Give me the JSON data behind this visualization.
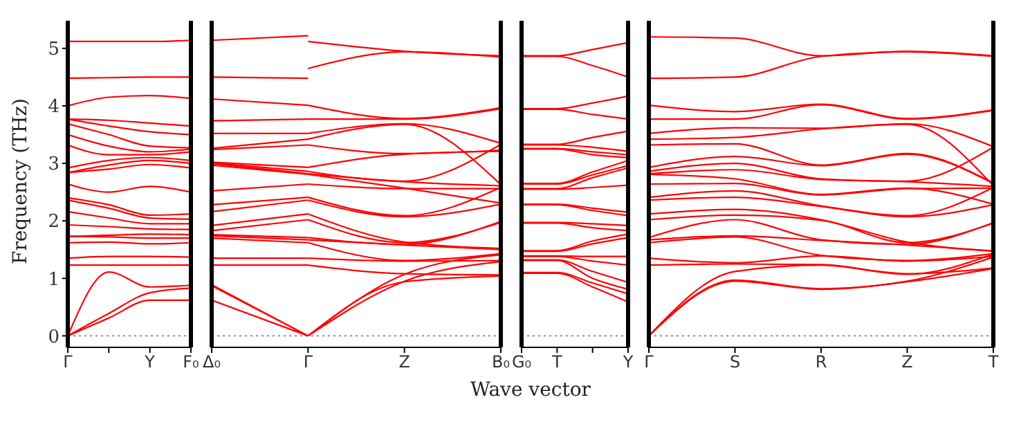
{
  "chart_data": [
    {
      "type": "line",
      "ylabel": "Frequency (THz)",
      "ylim": [
        -0.2,
        5.48
      ],
      "yticks": [
        0,
        1,
        2,
        3,
        4,
        5
      ],
      "categories": [
        "Γ",
        null,
        "Y",
        "F₀"
      ],
      "grid": false,
      "marker": "none",
      "ref_lines": [
        {
          "axis": "y",
          "value": 0,
          "label": null,
          "color": "#6f6fff",
          "line_style": "dotted"
        }
      ],
      "series": [
        {
          "color": "#ff0000",
          "values": [
            0,
            0.31,
            0.62,
            0.62
          ]
        },
        {
          "color": "#ff0000",
          "values": [
            0,
            0.39,
            0.75,
            0.83
          ]
        },
        {
          "color": "#ff0000",
          "values": [
            0,
            1.11,
            0.85,
            0.88
          ]
        },
        {
          "color": "#ff0000",
          "values": [
            1.23,
            1.23,
            1.23,
            1.23
          ]
        },
        {
          "color": "#ff0000",
          "values": [
            1.35,
            1.38,
            1.38,
            1.37
          ]
        },
        {
          "color": "#ff0000",
          "values": [
            1.62,
            1.63,
            1.6,
            1.62
          ]
        },
        {
          "color": "#ff0000",
          "values": [
            1.73,
            1.72,
            1.7,
            1.7
          ]
        },
        {
          "color": "#ff0000",
          "values": [
            1.73,
            1.75,
            1.77,
            1.76
          ]
        },
        {
          "color": "#ff0000",
          "values": [
            1.93,
            1.9,
            1.86,
            1.85
          ]
        },
        {
          "color": "#ff0000",
          "values": [
            2.16,
            2.05,
            1.95,
            1.95
          ]
        },
        {
          "color": "#ff0000",
          "values": [
            2.36,
            2.22,
            2.05,
            2.03
          ]
        },
        {
          "color": "#ff0000",
          "values": [
            2.4,
            2.28,
            2.1,
            2.12
          ]
        },
        {
          "color": "#ff0000",
          "values": [
            2.64,
            2.5,
            2.6,
            2.5
          ]
        },
        {
          "color": "#ff0000",
          "values": [
            2.84,
            2.9,
            2.98,
            2.92
          ]
        },
        {
          "color": "#ff0000",
          "values": [
            2.84,
            2.97,
            3.05,
            3.0
          ]
        },
        {
          "color": "#ff0000",
          "values": [
            2.92,
            3.05,
            3.1,
            3.05
          ]
        },
        {
          "color": "#ff0000",
          "values": [
            3.32,
            3.15,
            3.15,
            3.2
          ]
        },
        {
          "color": "#ff0000",
          "values": [
            3.5,
            3.3,
            3.2,
            3.25
          ]
        },
        {
          "color": "#ff0000",
          "values": [
            3.69,
            3.5,
            3.3,
            3.27
          ]
        },
        {
          "color": "#ff0000",
          "values": [
            3.77,
            3.65,
            3.55,
            3.5
          ]
        },
        {
          "color": "#ff0000",
          "values": [
            3.77,
            3.75,
            3.7,
            3.65
          ]
        },
        {
          "color": "#ff0000",
          "values": [
            4.0,
            4.15,
            4.18,
            4.13
          ]
        },
        {
          "color": "#ff0000",
          "values": [
            4.48,
            4.49,
            4.5,
            4.5
          ]
        },
        {
          "color": "#ff0000",
          "values": [
            5.12,
            5.12,
            5.12,
            5.14
          ]
        }
      ]
    },
    {
      "type": "line",
      "xlabel": "Wave vector",
      "tick_labels": "x",
      "ylim": [
        -0.2,
        5.48
      ],
      "yticks": [
        0,
        1,
        2,
        3,
        4,
        5
      ],
      "categories": [
        "Δ₀",
        "Γ",
        "Z",
        "B₀"
      ],
      "grid": false,
      "marker": "none",
      "ref_lines": [
        {
          "axis": "y",
          "value": 0,
          "label": null,
          "color": "#6f6fff",
          "line_style": "dotted"
        }
      ],
      "series": [
        {
          "color": "#ff0000",
          "values": [
            0.62,
            0,
            null,
            null
          ]
        },
        {
          "color": "#ff0000",
          "values": [
            0.87,
            0,
            null,
            null
          ]
        },
        {
          "color": "#ff0000",
          "values": [
            0.89,
            0,
            null,
            null
          ]
        },
        {
          "color": "#ff0000",
          "values": [
            1.23,
            1.23,
            null,
            null
          ]
        },
        {
          "color": "#ff0000",
          "values": [
            1.35,
            1.35,
            null,
            null
          ]
        },
        {
          "color": "#ff0000",
          "values": [
            1.7,
            1.62,
            null,
            null
          ]
        },
        {
          "color": "#ff0000",
          "values": [
            1.74,
            1.67,
            null,
            null
          ]
        },
        {
          "color": "#ff0000",
          "values": [
            1.76,
            1.71,
            null,
            null
          ]
        },
        {
          "color": "#ff0000",
          "values": [
            1.83,
            2.02,
            null,
            null
          ]
        },
        {
          "color": "#ff0000",
          "values": [
            1.92,
            2.12,
            null,
            null
          ]
        },
        {
          "color": "#ff0000",
          "values": [
            2.16,
            2.36,
            null,
            null
          ]
        },
        {
          "color": "#ff0000",
          "values": [
            2.28,
            2.41,
            null,
            null
          ]
        },
        {
          "color": "#ff0000",
          "values": [
            2.52,
            2.64,
            null,
            null
          ]
        },
        {
          "color": "#ff0000",
          "values": [
            2.97,
            2.81,
            null,
            null
          ]
        },
        {
          "color": "#ff0000",
          "values": [
            3.0,
            2.82,
            null,
            null
          ]
        },
        {
          "color": "#ff0000",
          "values": [
            3.01,
            2.86,
            null,
            null
          ]
        },
        {
          "color": "#ff0000",
          "values": [
            3.02,
            2.93,
            null,
            null
          ]
        },
        {
          "color": "#ff0000",
          "values": [
            3.24,
            3.32,
            null,
            null
          ]
        },
        {
          "color": "#ff0000",
          "values": [
            3.26,
            3.42,
            null,
            null
          ]
        },
        {
          "color": "#ff0000",
          "values": [
            3.52,
            3.52,
            null,
            null
          ]
        },
        {
          "color": "#ff0000",
          "values": [
            3.74,
            3.77,
            null,
            null
          ]
        },
        {
          "color": "#ff0000",
          "values": [
            4.12,
            4.01,
            null,
            null
          ]
        },
        {
          "color": "#ff0000",
          "values": [
            4.5,
            4.48,
            null,
            null
          ]
        },
        {
          "color": "#ff0000",
          "values": [
            5.14,
            5.22,
            null,
            null
          ]
        },
        {
          "color": "#ff0000",
          "values": [
            null,
            0,
            0.94,
            1.04
          ]
        },
        {
          "color": "#ff0000",
          "values": [
            null,
            0,
            0.95,
            1.29
          ]
        },
        {
          "color": "#ff0000",
          "values": [
            null,
            0,
            1.07,
            1.41
          ]
        },
        {
          "color": "#ff0000",
          "values": [
            null,
            1.23,
            1.08,
            1.06
          ]
        },
        {
          "color": "#ff0000",
          "values": [
            null,
            1.35,
            1.3,
            1.31
          ]
        },
        {
          "color": "#ff0000",
          "values": [
            null,
            1.62,
            1.31,
            1.43
          ]
        },
        {
          "color": "#ff0000",
          "values": [
            null,
            1.67,
            1.58,
            1.5
          ]
        },
        {
          "color": "#ff0000",
          "values": [
            null,
            1.71,
            1.59,
            1.99
          ]
        },
        {
          "color": "#ff0000",
          "values": [
            null,
            2.02,
            1.62,
            1.97
          ]
        },
        {
          "color": "#ff0000",
          "values": [
            null,
            2.12,
            1.63,
            1.52
          ]
        },
        {
          "color": "#ff0000",
          "values": [
            null,
            2.36,
            2.07,
            2.29
          ]
        },
        {
          "color": "#ff0000",
          "values": [
            null,
            2.41,
            2.09,
            2.58
          ]
        },
        {
          "color": "#ff0000",
          "values": [
            null,
            2.64,
            2.56,
            2.56
          ]
        },
        {
          "color": "#ff0000",
          "values": [
            null,
            2.81,
            2.57,
            2.31
          ]
        },
        {
          "color": "#ff0000",
          "values": [
            null,
            2.82,
            2.68,
            2.61
          ]
        },
        {
          "color": "#ff0000",
          "values": [
            null,
            2.86,
            2.69,
            3.33
          ]
        },
        {
          "color": "#ff0000",
          "values": [
            null,
            2.93,
            3.16,
            3.21
          ]
        },
        {
          "color": "#ff0000",
          "values": [
            null,
            3.32,
            3.17,
            3.23
          ]
        },
        {
          "color": "#ff0000",
          "values": [
            null,
            3.42,
            3.68,
            2.63
          ]
        },
        {
          "color": "#ff0000",
          "values": [
            null,
            3.52,
            3.69,
            3.35
          ]
        },
        {
          "color": "#ff0000",
          "values": [
            null,
            3.77,
            3.77,
            3.95
          ]
        },
        {
          "color": "#ff0000",
          "values": [
            null,
            4.01,
            3.78,
            3.97
          ]
        },
        {
          "color": "#ff0000",
          "values": [
            null,
            4.65,
            4.94,
            4.85
          ]
        },
        {
          "color": "#ff0000",
          "values": [
            null,
            5.12,
            4.95,
            4.87
          ]
        }
      ]
    },
    {
      "type": "line",
      "tick_labels": "x",
      "ylim": [
        -0.2,
        5.48
      ],
      "yticks": [
        0,
        1,
        2,
        3,
        4,
        5
      ],
      "categories": [
        "G₀",
        "T",
        null,
        "Y"
      ],
      "grid": false,
      "marker": "none",
      "ref_lines": [
        {
          "axis": "y",
          "value": 0,
          "label": null,
          "color": "#6f6fff",
          "line_style": "dotted"
        }
      ],
      "series": [
        {
          "color": "#ff0000",
          "values": [
            1.09,
            1.09,
            0.85,
            0.59
          ]
        },
        {
          "color": "#ff0000",
          "values": [
            1.1,
            1.1,
            0.92,
            0.73
          ]
        },
        {
          "color": "#ff0000",
          "values": [
            1.31,
            1.31,
            1.0,
            0.81
          ]
        },
        {
          "color": "#ff0000",
          "values": [
            1.32,
            1.32,
            1.12,
            0.93
          ]
        },
        {
          "color": "#ff0000",
          "values": [
            1.38,
            1.38,
            1.3,
            1.23
          ]
        },
        {
          "color": "#ff0000",
          "values": [
            1.39,
            1.39,
            1.38,
            1.38
          ]
        },
        {
          "color": "#ff0000",
          "values": [
            1.47,
            1.47,
            1.6,
            1.71
          ]
        },
        {
          "color": "#ff0000",
          "values": [
            1.48,
            1.48,
            1.65,
            1.77
          ]
        },
        {
          "color": "#ff0000",
          "values": [
            1.96,
            1.96,
            1.88,
            1.83
          ]
        },
        {
          "color": "#ff0000",
          "values": [
            1.97,
            1.97,
            1.95,
            1.92
          ]
        },
        {
          "color": "#ff0000",
          "values": [
            2.28,
            2.28,
            2.18,
            2.09
          ]
        },
        {
          "color": "#ff0000",
          "values": [
            2.29,
            2.29,
            2.22,
            2.15
          ]
        },
        {
          "color": "#ff0000",
          "values": [
            2.55,
            2.55,
            2.58,
            2.62
          ]
        },
        {
          "color": "#ff0000",
          "values": [
            2.56,
            2.56,
            2.75,
            2.92
          ]
        },
        {
          "color": "#ff0000",
          "values": [
            2.64,
            2.64,
            2.8,
            2.96
          ]
        },
        {
          "color": "#ff0000",
          "values": [
            2.65,
            2.65,
            2.85,
            3.05
          ]
        },
        {
          "color": "#ff0000",
          "values": [
            3.25,
            3.25,
            3.15,
            3.1
          ]
        },
        {
          "color": "#ff0000",
          "values": [
            3.26,
            3.26,
            3.2,
            3.15
          ]
        },
        {
          "color": "#ff0000",
          "values": [
            3.32,
            3.32,
            3.28,
            3.21
          ]
        },
        {
          "color": "#ff0000",
          "values": [
            3.33,
            3.33,
            3.45,
            3.56
          ]
        },
        {
          "color": "#ff0000",
          "values": [
            3.94,
            3.94,
            3.85,
            3.77
          ]
        },
        {
          "color": "#ff0000",
          "values": [
            3.95,
            3.95,
            4.05,
            4.17
          ]
        },
        {
          "color": "#ff0000",
          "values": [
            4.86,
            4.86,
            4.7,
            4.5
          ]
        },
        {
          "color": "#ff0000",
          "values": [
            4.87,
            4.87,
            4.98,
            5.1
          ]
        }
      ]
    },
    {
      "type": "line",
      "tick_labels": "x",
      "ylim": [
        -0.2,
        5.48
      ],
      "yticks": [
        0,
        1,
        2,
        3,
        4,
        5
      ],
      "categories": [
        "Γ",
        "S",
        "R",
        "Z",
        "T"
      ],
      "grid": false,
      "marker": "none",
      "ref_lines": [
        {
          "axis": "y",
          "value": 0,
          "label": null,
          "color": "#6f6fff",
          "line_style": "dotted"
        }
      ],
      "series": [
        {
          "color": "#ff0000",
          "values": [
            0,
            0.95,
            0.81,
            0.94,
            1.17
          ]
        },
        {
          "color": "#ff0000",
          "values": [
            0,
            0.97,
            0.82,
            0.95,
            1.37
          ]
        },
        {
          "color": "#ff0000",
          "values": [
            0,
            1.12,
            1.23,
            1.07,
            1.42
          ]
        },
        {
          "color": "#ff0000",
          "values": [
            1.23,
            1.25,
            1.24,
            1.08,
            1.18
          ]
        },
        {
          "color": "#ff0000",
          "values": [
            1.35,
            1.27,
            1.39,
            1.3,
            1.38
          ]
        },
        {
          "color": "#ff0000",
          "values": [
            1.62,
            1.72,
            1.4,
            1.31,
            1.43
          ]
        },
        {
          "color": "#ff0000",
          "values": [
            1.67,
            1.74,
            1.66,
            1.58,
            1.47
          ]
        },
        {
          "color": "#ff0000",
          "values": [
            1.71,
            2.02,
            1.67,
            1.59,
            1.97
          ]
        },
        {
          "color": "#ff0000",
          "values": [
            2.02,
            2.1,
            2.01,
            1.62,
            1.96
          ]
        },
        {
          "color": "#ff0000",
          "values": [
            2.12,
            2.2,
            2.02,
            1.63,
            1.48
          ]
        },
        {
          "color": "#ff0000",
          "values": [
            2.36,
            2.41,
            2.25,
            2.07,
            2.28
          ]
        },
        {
          "color": "#ff0000",
          "values": [
            2.41,
            2.52,
            2.26,
            2.09,
            2.58
          ]
        },
        {
          "color": "#ff0000",
          "values": [
            2.64,
            2.65,
            2.45,
            2.56,
            2.57
          ]
        },
        {
          "color": "#ff0000",
          "values": [
            2.81,
            2.73,
            2.46,
            2.57,
            2.29
          ]
        },
        {
          "color": "#ff0000",
          "values": [
            2.82,
            2.89,
            2.72,
            2.68,
            2.6
          ]
        },
        {
          "color": "#ff0000",
          "values": [
            2.86,
            3.0,
            2.73,
            2.69,
            3.28
          ]
        },
        {
          "color": "#ff0000",
          "values": [
            2.93,
            3.12,
            2.96,
            3.16,
            2.65
          ]
        },
        {
          "color": "#ff0000",
          "values": [
            3.32,
            3.34,
            2.97,
            3.17,
            2.66
          ]
        },
        {
          "color": "#ff0000",
          "values": [
            3.42,
            3.45,
            3.6,
            3.68,
            2.61
          ]
        },
        {
          "color": "#ff0000",
          "values": [
            3.52,
            3.62,
            3.61,
            3.69,
            3.29
          ]
        },
        {
          "color": "#ff0000",
          "values": [
            3.77,
            3.77,
            4.02,
            3.77,
            3.92
          ]
        },
        {
          "color": "#ff0000",
          "values": [
            4.01,
            3.9,
            4.03,
            3.78,
            3.93
          ]
        },
        {
          "color": "#ff0000",
          "values": [
            4.48,
            4.5,
            4.86,
            4.94,
            4.86
          ]
        },
        {
          "color": "#ff0000",
          "values": [
            5.2,
            5.18,
            4.87,
            4.95,
            4.87
          ]
        }
      ]
    }
  ]
}
